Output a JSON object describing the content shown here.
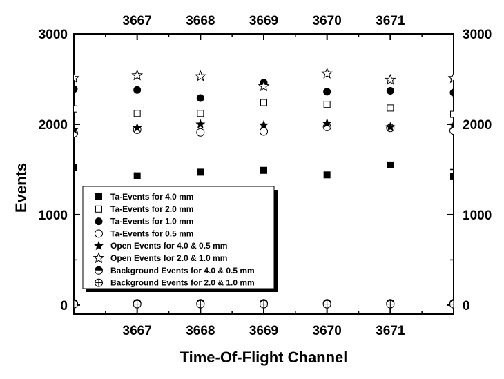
{
  "chart_data": {
    "type": "scatter",
    "xlabel": "Time-Of-Flight Channel",
    "ylabel": "Events",
    "xlim": [
      3666,
      3672
    ],
    "ylim": [
      -100,
      3000
    ],
    "xticks": [
      3667,
      3668,
      3669,
      3670,
      3671
    ],
    "xtick_labels": [
      "3667",
      "3668",
      "3669",
      "3670",
      "3671"
    ],
    "yticks": [
      0,
      1000,
      2000,
      3000
    ],
    "ytick_labels": [
      "0",
      "1000",
      "2000",
      "3000"
    ],
    "legend_position": "lower-left",
    "grid": false,
    "series": [
      {
        "name": "Ta-Events for 4.0 mm",
        "marker": "filled-square",
        "x": [
          3666,
          3667,
          3668,
          3669,
          3670,
          3671,
          3672
        ],
        "y": [
          1520,
          1430,
          1470,
          1490,
          1440,
          1550,
          1420
        ]
      },
      {
        "name": "Ta-Events for 2.0 mm",
        "marker": "open-square",
        "x": [
          3666,
          3667,
          3668,
          3669,
          3670,
          3671,
          3672
        ],
        "y": [
          2170,
          2120,
          2120,
          2240,
          2220,
          2180,
          2110
        ]
      },
      {
        "name": "Ta-Events for 1.0 mm",
        "marker": "filled-circle",
        "x": [
          3666,
          3667,
          3668,
          3669,
          3670,
          3671,
          3672
        ],
        "y": [
          2390,
          2380,
          2290,
          2460,
          2360,
          2370,
          2350
        ]
      },
      {
        "name": "Ta-Events for 0.5 mm",
        "marker": "open-circle",
        "x": [
          3666,
          3667,
          3668,
          3669,
          3670,
          3671,
          3672
        ],
        "y": [
          1900,
          1940,
          1910,
          1920,
          1970,
          1960,
          1930
        ]
      },
      {
        "name": "Open Events for 4.0 & 0.5 mm",
        "marker": "filled-star",
        "x": [
          3666,
          3667,
          3668,
          3669,
          3670,
          3671,
          3672
        ],
        "y": [
          1940,
          1960,
          2000,
          1990,
          2010,
          1970,
          1990
        ]
      },
      {
        "name": "Open Events for 2.0 & 1.0 mm",
        "marker": "open-star",
        "x": [
          3666,
          3667,
          3668,
          3669,
          3670,
          3671,
          3672
        ],
        "y": [
          2510,
          2540,
          2530,
          2420,
          2560,
          2490,
          2510
        ]
      },
      {
        "name": "Background Events for 4.0 & 0.5 mm",
        "marker": "half-circle",
        "x": [
          3666,
          3667,
          3668,
          3669,
          3670,
          3671,
          3672
        ],
        "y": [
          20,
          20,
          20,
          20,
          20,
          20,
          20
        ]
      },
      {
        "name": "Background Events for 2.0 & 1.0 mm",
        "marker": "crossed-circle",
        "x": [
          3666,
          3667,
          3668,
          3669,
          3670,
          3671,
          3672
        ],
        "y": [
          10,
          10,
          10,
          10,
          10,
          10,
          10
        ]
      }
    ]
  }
}
